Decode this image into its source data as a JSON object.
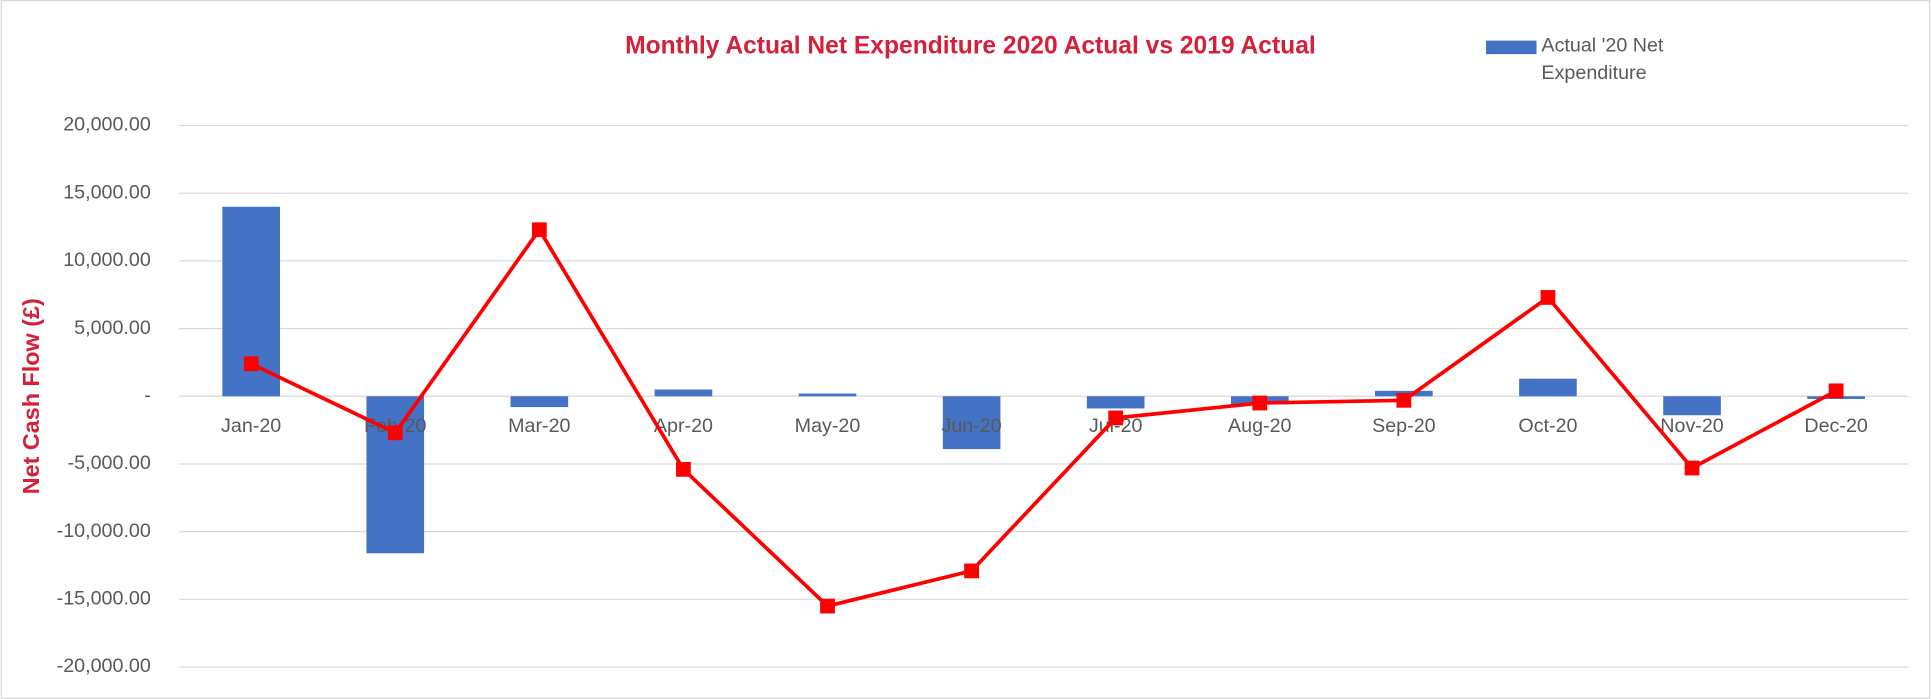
{
  "chart_data": {
    "type": "bar_line",
    "title": "Monthly Actual Net Expenditure 2020 Actual vs 2019 Actual",
    "y_label": "Net Cash Flow (£)",
    "categories": [
      "Jan-20",
      "Feb-20",
      "Mar-20",
      "Apr-20",
      "May-20",
      "Jun-20",
      "Jul-20",
      "Aug-20",
      "Sep-20",
      "Oct-20",
      "Nov-20",
      "Dec-20"
    ],
    "series": [
      {
        "name": "Actual '20 Net Expenditure",
        "type": "bar",
        "color": "#4472c4",
        "values": [
          14000,
          -11600,
          -800,
          500,
          200,
          -3900,
          -900,
          -600,
          400,
          1300,
          -1400,
          -200
        ]
      },
      {
        "type": "line",
        "color": "#ff0000",
        "values": [
          2400,
          -2700,
          12300,
          -5400,
          -15500,
          -12900,
          -1600,
          -500,
          -300,
          7300,
          -5300,
          400
        ]
      }
    ],
    "ylim": [
      -20000,
      20000
    ],
    "yticks": [
      {
        "value": 20000,
        "label": "20,000.00"
      },
      {
        "value": 15000,
        "label": "15,000.00"
      },
      {
        "value": 10000,
        "label": "10,000.00"
      },
      {
        "value": 5000,
        "label": "5,000.00"
      },
      {
        "value": 0,
        "label": "-"
      },
      {
        "value": -5000,
        "label": "-5,000.00"
      },
      {
        "value": -10000,
        "label": "-10,000.00"
      },
      {
        "value": -15000,
        "label": "-15,000.00"
      },
      {
        "value": -20000,
        "label": "-20,000.00"
      }
    ],
    "grid": true,
    "legend": "top-right"
  }
}
